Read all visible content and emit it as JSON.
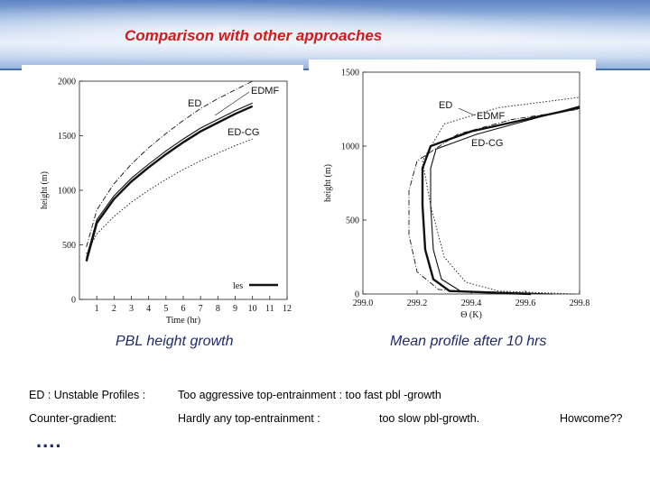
{
  "title": "Comparison with other approaches",
  "captions": {
    "left": "PBL height growth",
    "right": "Mean profile after 10 hrs"
  },
  "text_lines": {
    "line1_a": "ED : Unstable Profiles :",
    "line1_b": "Too aggressive top-entrainment : too fast pbl -growth",
    "line2_a": "Counter-gradient:",
    "line2_b": "Hardly any top-entrainment :",
    "line2_c": "too slow pbl-growth.",
    "line2_d": "Howcome??"
  },
  "ellipsis": "....",
  "chart_data": [
    {
      "type": "line",
      "xlabel": "Time (hr)",
      "ylabel": "height (m)",
      "xlim": [
        0,
        12
      ],
      "ylim": [
        0,
        2000
      ],
      "xticks": [
        1,
        2,
        3,
        4,
        5,
        6,
        7,
        8,
        9,
        10,
        11,
        12
      ],
      "yticks": [
        0,
        500,
        1000,
        1500,
        2000
      ],
      "annotations": [
        "ED",
        "EDMF",
        "ED-CG"
      ],
      "legend_entry": "les",
      "legend_placement": "bottom-right",
      "series": [
        {
          "style": "solid-thick",
          "x": [
            0.4,
            1,
            2,
            3,
            4,
            5,
            6,
            7,
            8,
            9,
            10
          ],
          "y": [
            350,
            700,
            920,
            1080,
            1210,
            1330,
            1440,
            1540,
            1620,
            1700,
            1770
          ]
        },
        {
          "style": "solid-thin",
          "x": [
            0.4,
            1,
            2,
            3,
            4,
            5,
            6,
            7,
            8,
            9,
            10
          ],
          "y": [
            380,
            730,
            950,
            1110,
            1240,
            1360,
            1470,
            1570,
            1650,
            1730,
            1800
          ]
        },
        {
          "style": "dash-dot",
          "x": [
            0.4,
            1,
            2,
            3,
            4,
            5,
            6,
            7,
            8,
            9,
            10
          ],
          "y": [
            480,
            820,
            1060,
            1240,
            1390,
            1520,
            1640,
            1750,
            1840,
            1920,
            2000
          ]
        },
        {
          "style": "dotted",
          "x": [
            0.4,
            1,
            2,
            3,
            4,
            5,
            6,
            7,
            8,
            9,
            10
          ],
          "y": [
            420,
            600,
            760,
            890,
            1000,
            1100,
            1190,
            1270,
            1340,
            1410,
            1470
          ]
        }
      ]
    },
    {
      "type": "line",
      "xlabel": "Θ (K)",
      "ylabel": "height (m)",
      "xlim": [
        299.0,
        299.8
      ],
      "ylim": [
        0,
        1500
      ],
      "xticks": [
        299.0,
        299.2,
        299.4,
        299.6,
        299.8
      ],
      "yticks": [
        0,
        500,
        1000,
        1500
      ],
      "annotations": [
        "ED",
        "EDMF",
        "ED-CG"
      ],
      "series": [
        {
          "style": "solid-thick",
          "x": [
            299.62,
            299.32,
            299.26,
            299.23,
            299.22,
            299.22,
            299.25,
            299.4,
            299.6,
            299.8
          ],
          "y": [
            0,
            20,
            100,
            300,
            600,
            850,
            1000,
            1100,
            1180,
            1260
          ]
        },
        {
          "style": "solid-thin",
          "x": [
            299.7,
            299.36,
            299.29,
            299.26,
            299.25,
            299.25,
            299.27,
            299.42,
            299.62,
            299.8
          ],
          "y": [
            0,
            20,
            100,
            300,
            600,
            850,
            980,
            1080,
            1180,
            1270
          ]
        },
        {
          "style": "dash-dot",
          "x": [
            299.55,
            299.28,
            299.2,
            299.17,
            299.17,
            299.2,
            299.35,
            299.55,
            299.8
          ],
          "y": [
            0,
            30,
            150,
            400,
            700,
            900,
            1080,
            1180,
            1250
          ]
        },
        {
          "style": "dotted",
          "x": [
            299.78,
            299.5,
            299.38,
            299.3,
            299.25,
            299.22,
            299.3,
            299.5,
            299.8
          ],
          "y": [
            0,
            20,
            80,
            250,
            600,
            900,
            1150,
            1260,
            1330
          ]
        }
      ]
    }
  ]
}
